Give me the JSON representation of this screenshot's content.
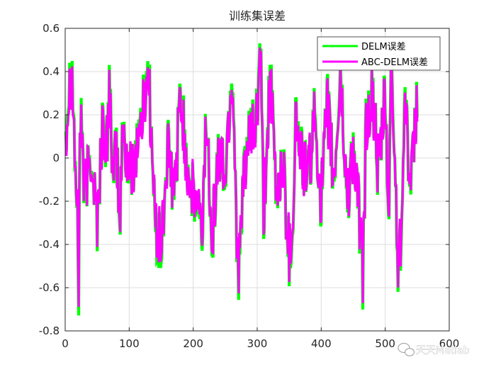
{
  "chart_data": {
    "type": "line",
    "title": "训练集误差",
    "xlabel": "",
    "ylabel": "",
    "xlim": [
      0,
      600
    ],
    "ylim": [
      -0.8,
      0.6
    ],
    "x_ticks": [
      0,
      100,
      200,
      300,
      400,
      500,
      600
    ],
    "y_ticks": [
      -0.8,
      -0.6,
      -0.4,
      -0.2,
      0,
      0.2,
      0.4,
      0.6
    ],
    "grid": true,
    "legend_position": "top-right",
    "n_points": 550,
    "series": [
      {
        "name": "DELM误差",
        "color": "#00ff00",
        "x": [
          1,
          10,
          20,
          21,
          22,
          25,
          30,
          40,
          50,
          60,
          63,
          70,
          75,
          80,
          85,
          90,
          100,
          110,
          120,
          130,
          140,
          150,
          160,
          170,
          180,
          190,
          200,
          210,
          213,
          220,
          230,
          240,
          250,
          260,
          263,
          270,
          275,
          280,
          290,
          300,
          305,
          310,
          320,
          330,
          340,
          350,
          355,
          360,
          370,
          380,
          390,
          400,
          410,
          420,
          430,
          440,
          450,
          460,
          465,
          470,
          480,
          490,
          500,
          505,
          510,
          520,
          525,
          530,
          540,
          550
        ],
        "values": [
          0.15,
          0.48,
          -0.4,
          -0.68,
          -0.1,
          0.25,
          -0.2,
          0.05,
          -0.3,
          0.25,
          -0.1,
          0.4,
          -0.2,
          0.1,
          -0.35,
          0.15,
          -0.1,
          0.05,
          0.2,
          0.45,
          -0.3,
          -0.45,
          0.05,
          -0.2,
          0.3,
          0.0,
          -0.2,
          -0.25,
          -0.45,
          0.2,
          -0.35,
          0.05,
          -0.1,
          0.4,
          0.25,
          -0.55,
          -0.4,
          0.0,
          0.1,
          0.2,
          0.52,
          -0.3,
          0.4,
          -0.2,
          0.0,
          -0.45,
          -0.35,
          0.2,
          0.0,
          -0.1,
          0.2,
          -0.2,
          0.25,
          -0.15,
          0.4,
          -0.2,
          0.05,
          -0.3,
          -0.57,
          0.15,
          0.3,
          -0.1,
          0.3,
          -0.3,
          0.45,
          -0.5,
          -0.35,
          0.35,
          -0.2,
          0.3
        ]
      },
      {
        "name": "ABC-DELM误差",
        "color": "#ff00ff",
        "x": [
          1,
          10,
          20,
          21,
          22,
          25,
          30,
          40,
          50,
          60,
          63,
          70,
          75,
          80,
          85,
          90,
          100,
          110,
          120,
          130,
          140,
          150,
          160,
          170,
          180,
          190,
          200,
          210,
          213,
          220,
          230,
          240,
          250,
          260,
          263,
          270,
          275,
          280,
          290,
          300,
          305,
          310,
          320,
          330,
          340,
          350,
          355,
          360,
          370,
          380,
          390,
          400,
          410,
          420,
          430,
          440,
          450,
          460,
          465,
          470,
          480,
          490,
          500,
          505,
          510,
          520,
          525,
          530,
          540,
          550
        ],
        "values": [
          0.13,
          0.45,
          -0.38,
          -0.64,
          -0.08,
          0.22,
          -0.18,
          0.03,
          -0.28,
          0.23,
          -0.08,
          0.37,
          -0.18,
          0.08,
          -0.33,
          0.13,
          -0.08,
          0.03,
          0.18,
          0.42,
          -0.28,
          -0.42,
          0.03,
          -0.18,
          0.28,
          -0.02,
          -0.18,
          -0.23,
          -0.42,
          0.18,
          -0.33,
          0.03,
          -0.08,
          0.37,
          0.23,
          -0.52,
          -0.37,
          -0.02,
          0.08,
          0.18,
          0.5,
          -0.28,
          0.37,
          -0.18,
          -0.02,
          -0.43,
          -0.33,
          0.18,
          -0.02,
          -0.08,
          0.18,
          -0.18,
          0.23,
          -0.13,
          0.37,
          -0.18,
          0.03,
          -0.28,
          -0.54,
          0.13,
          0.28,
          -0.08,
          0.28,
          -0.28,
          0.43,
          -0.48,
          -0.33,
          0.32,
          -0.18,
          0.28
        ]
      }
    ]
  },
  "watermark": {
    "text": "天天Matlab",
    "icon": "wechat-icon"
  }
}
